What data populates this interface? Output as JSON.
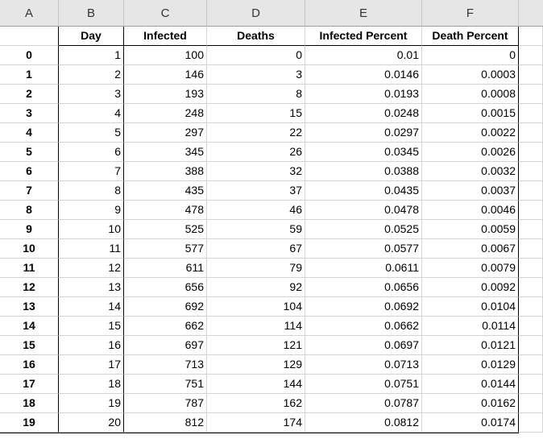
{
  "column_letters": [
    "A",
    "B",
    "C",
    "D",
    "E",
    "F"
  ],
  "header_row": [
    "",
    "Day",
    "Infected",
    "Deaths",
    "Infected Percent",
    "Death Percent"
  ],
  "rows": [
    [
      "0",
      "1",
      "100",
      "0",
      "0.01",
      "0"
    ],
    [
      "1",
      "2",
      "146",
      "3",
      "0.0146",
      "0.0003"
    ],
    [
      "2",
      "3",
      "193",
      "8",
      "0.0193",
      "0.0008"
    ],
    [
      "3",
      "4",
      "248",
      "15",
      "0.0248",
      "0.0015"
    ],
    [
      "4",
      "5",
      "297",
      "22",
      "0.0297",
      "0.0022"
    ],
    [
      "5",
      "6",
      "345",
      "26",
      "0.0345",
      "0.0026"
    ],
    [
      "6",
      "7",
      "388",
      "32",
      "0.0388",
      "0.0032"
    ],
    [
      "7",
      "8",
      "435",
      "37",
      "0.0435",
      "0.0037"
    ],
    [
      "8",
      "9",
      "478",
      "46",
      "0.0478",
      "0.0046"
    ],
    [
      "9",
      "10",
      "525",
      "59",
      "0.0525",
      "0.0059"
    ],
    [
      "10",
      "11",
      "577",
      "67",
      "0.0577",
      "0.0067"
    ],
    [
      "11",
      "12",
      "611",
      "79",
      "0.0611",
      "0.0079"
    ],
    [
      "12",
      "13",
      "656",
      "92",
      "0.0656",
      "0.0092"
    ],
    [
      "13",
      "14",
      "692",
      "104",
      "0.0692",
      "0.0104"
    ],
    [
      "14",
      "15",
      "662",
      "114",
      "0.0662",
      "0.0114"
    ],
    [
      "15",
      "16",
      "697",
      "121",
      "0.0697",
      "0.0121"
    ],
    [
      "16",
      "17",
      "713",
      "129",
      "0.0713",
      "0.0129"
    ],
    [
      "17",
      "18",
      "751",
      "144",
      "0.0751",
      "0.0144"
    ],
    [
      "18",
      "19",
      "787",
      "162",
      "0.0787",
      "0.0162"
    ],
    [
      "19",
      "20",
      "812",
      "174",
      "0.0812",
      "0.0174"
    ]
  ]
}
